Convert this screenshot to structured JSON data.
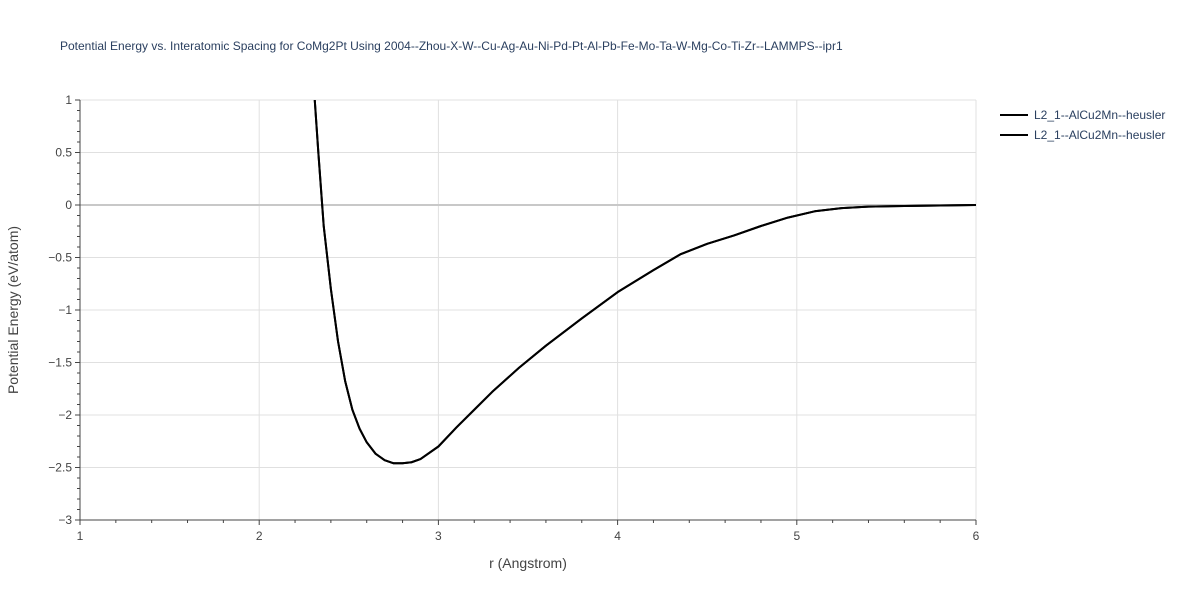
{
  "chart_data": {
    "type": "line",
    "title": "Potential Energy vs. Interatomic Spacing for CoMg2Pt Using 2004--Zhou-X-W--Cu-Ag-Au-Ni-Pd-Pt-Al-Pb-Fe-Mo-Ta-W-Mg-Co-Ti-Zr--LAMMPS--ipr1",
    "xlabel": "r (Angstrom)",
    "ylabel": "Potential Energy (eV/atom)",
    "xlim": [
      1,
      6
    ],
    "ylim": [
      -3,
      1
    ],
    "x_ticks": [
      1,
      2,
      3,
      4,
      5,
      6
    ],
    "y_ticks": [
      1,
      0.5,
      0,
      -0.5,
      -1,
      -1.5,
      -2,
      -2.5,
      -3
    ],
    "x_tick_labels": [
      "1",
      "2",
      "3",
      "4",
      "5",
      "6"
    ],
    "y_tick_labels": [
      "1",
      "0.5",
      "0",
      "−0.5",
      "−1",
      "−1.5",
      "−2",
      "−2.5",
      "−3"
    ],
    "grid": true,
    "legend_position": "top-right",
    "line_color": "#000000",
    "series": [
      {
        "name": "L2_1--AlCu2Mn--heusler",
        "x": [
          2.31,
          2.33,
          2.36,
          2.4,
          2.44,
          2.48,
          2.52,
          2.56,
          2.6,
          2.65,
          2.7,
          2.75,
          2.8,
          2.85,
          2.9,
          3.0,
          3.1,
          3.2,
          3.3,
          3.45,
          3.6,
          3.8,
          4.0,
          4.2,
          4.35,
          4.5,
          4.65,
          4.8,
          4.95,
          5.1,
          5.25,
          5.4,
          5.6,
          5.8,
          6.0
        ],
        "y": [
          1.0,
          0.5,
          -0.2,
          -0.8,
          -1.3,
          -1.68,
          -1.95,
          -2.13,
          -2.26,
          -2.37,
          -2.43,
          -2.46,
          -2.46,
          -2.45,
          -2.42,
          -2.3,
          -2.12,
          -1.95,
          -1.78,
          -1.55,
          -1.34,
          -1.08,
          -0.83,
          -0.62,
          -0.47,
          -0.37,
          -0.29,
          -0.2,
          -0.12,
          -0.06,
          -0.03,
          -0.015,
          -0.01,
          -0.005,
          0.0
        ]
      },
      {
        "name": "L2_1--AlCu2Mn--heusler",
        "x": [
          2.31,
          2.33,
          2.36,
          2.4,
          2.44,
          2.48,
          2.52,
          2.56,
          2.6,
          2.65,
          2.7,
          2.75,
          2.8,
          2.85,
          2.9,
          3.0,
          3.1,
          3.2,
          3.3,
          3.45,
          3.6,
          3.8,
          4.0,
          4.2,
          4.35,
          4.5,
          4.65,
          4.8,
          4.95,
          5.1,
          5.25,
          5.4,
          5.6,
          5.8,
          6.0
        ],
        "y": [
          1.0,
          0.5,
          -0.2,
          -0.8,
          -1.3,
          -1.68,
          -1.95,
          -2.13,
          -2.26,
          -2.37,
          -2.43,
          -2.46,
          -2.46,
          -2.45,
          -2.42,
          -2.3,
          -2.12,
          -1.95,
          -1.78,
          -1.55,
          -1.34,
          -1.08,
          -0.83,
          -0.62,
          -0.47,
          -0.37,
          -0.29,
          -0.2,
          -0.12,
          -0.06,
          -0.03,
          -0.015,
          -0.01,
          -0.005,
          0.0
        ]
      }
    ]
  }
}
